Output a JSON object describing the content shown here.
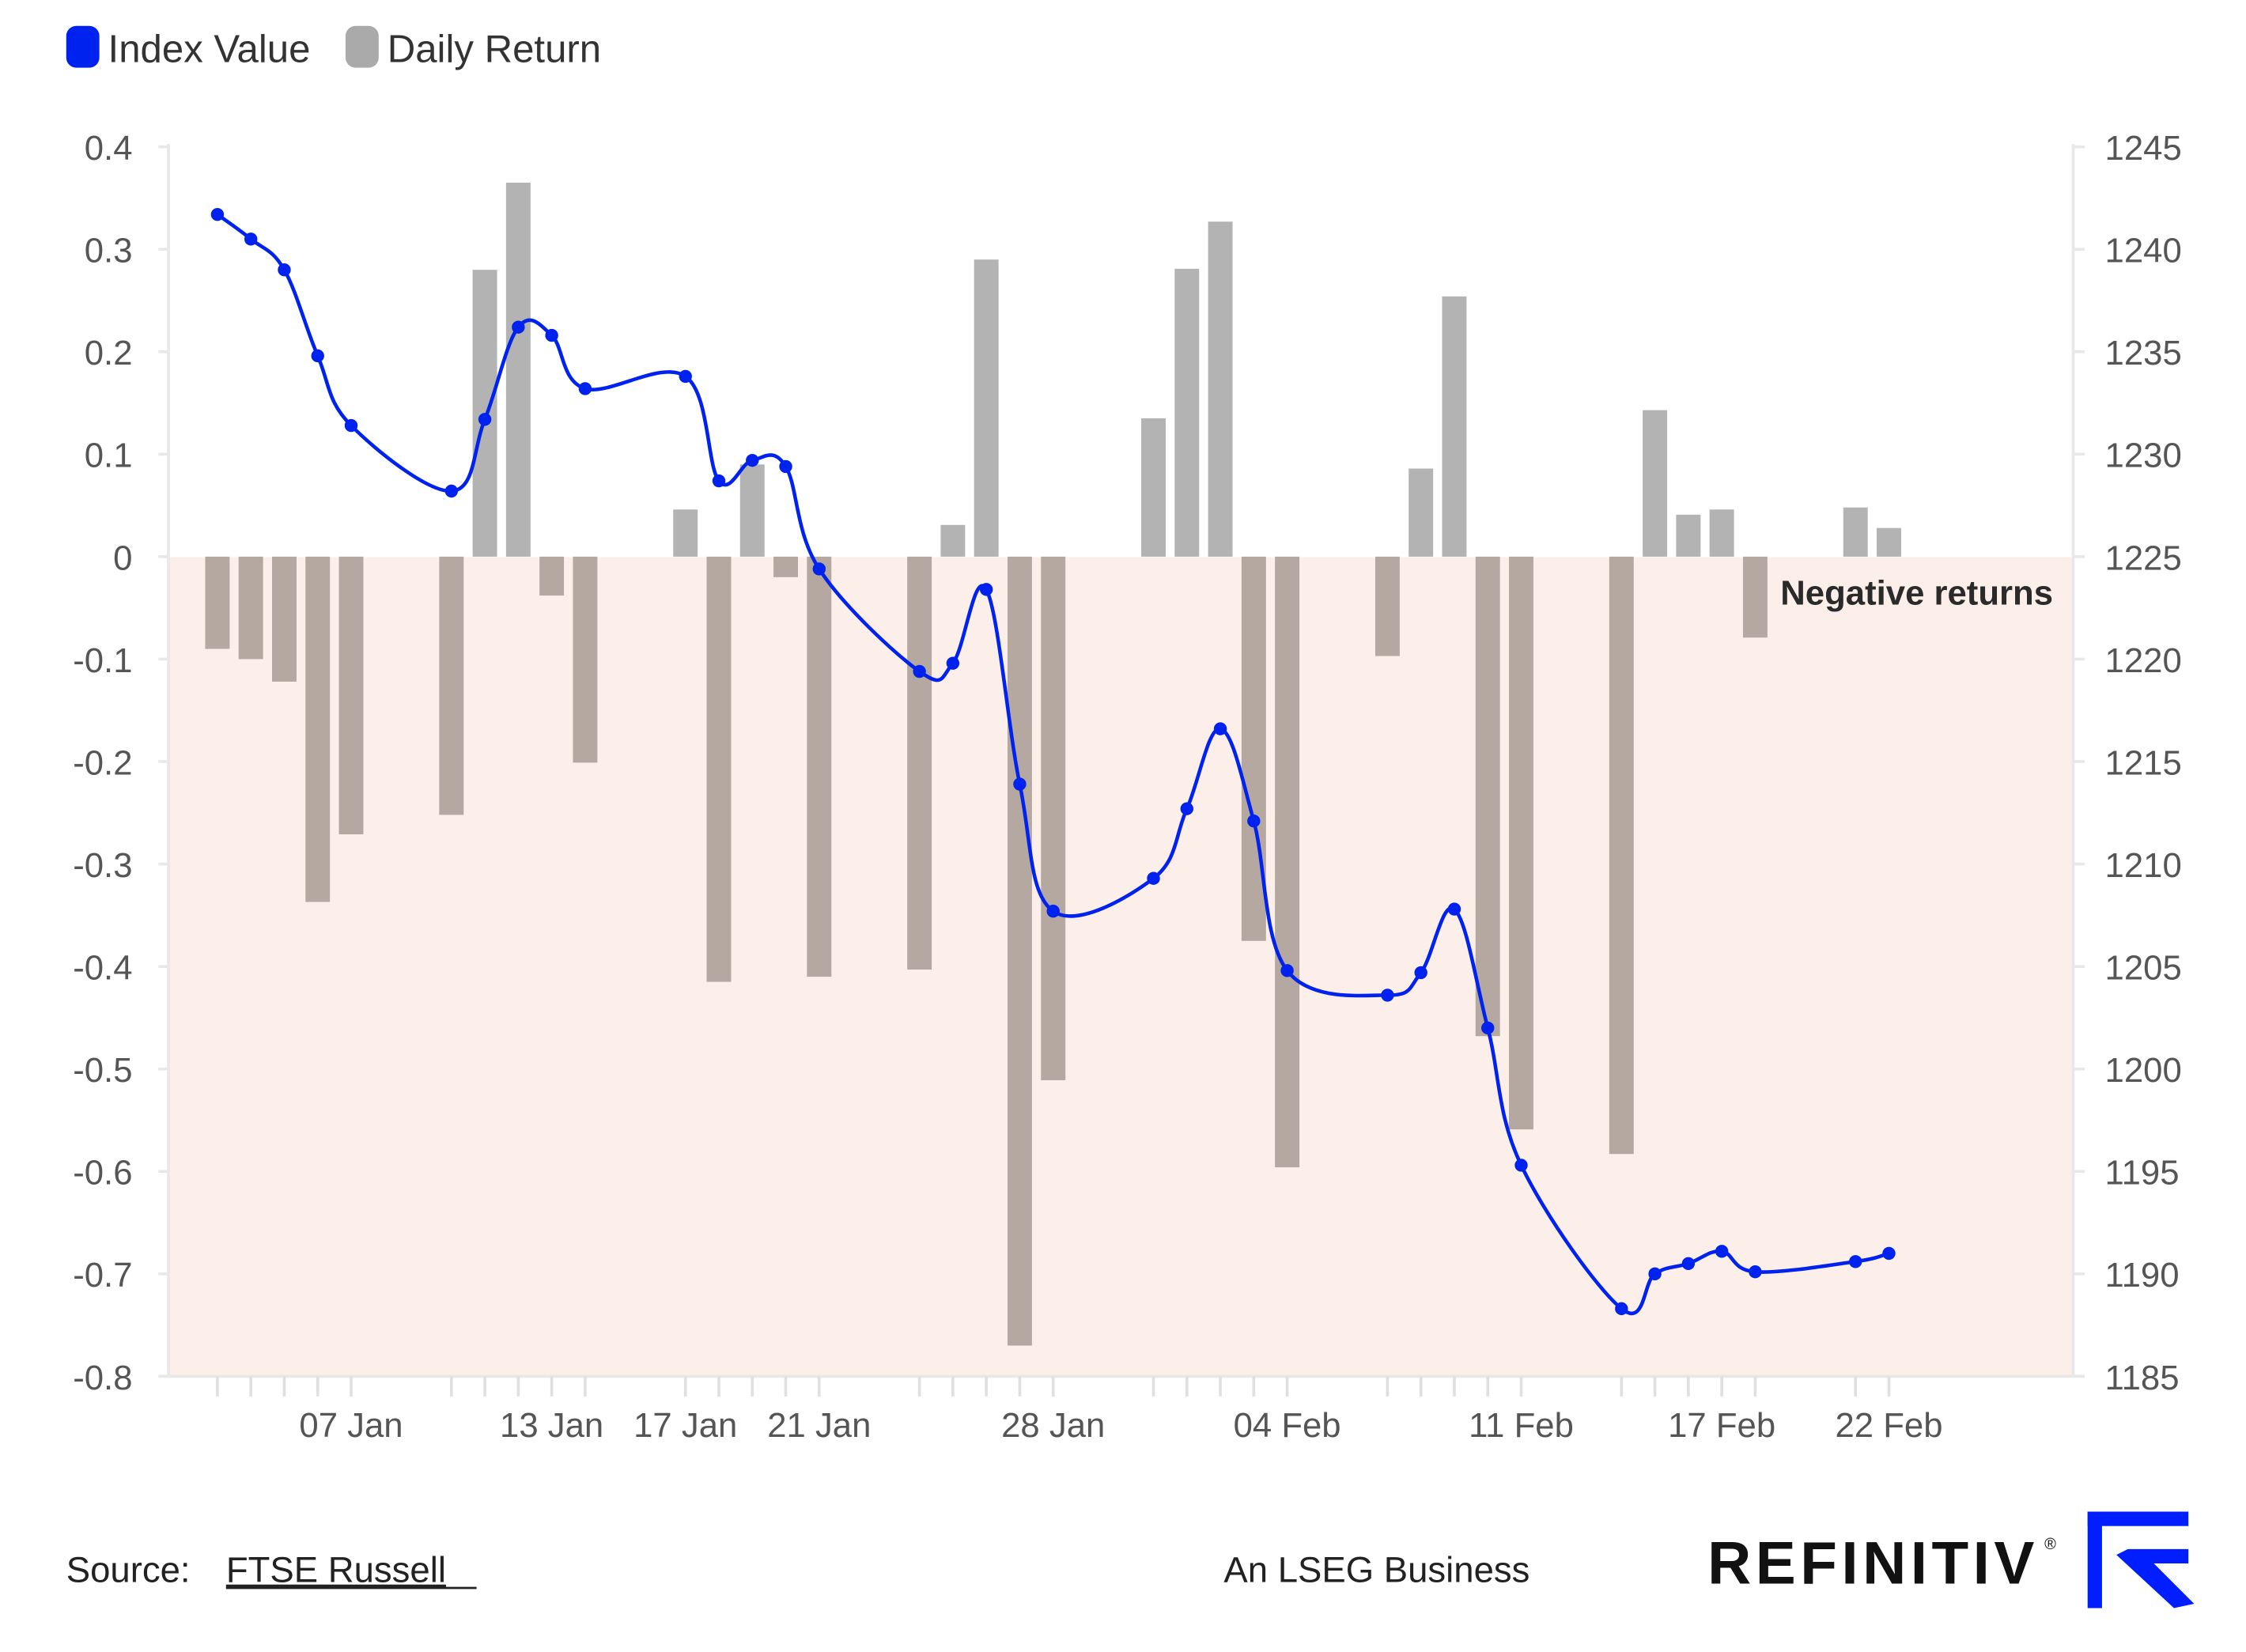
{
  "legend": {
    "index_label": "Index Value",
    "return_label": "Daily Return"
  },
  "annotation": "Negative returns",
  "footer": {
    "source_label": "Source:",
    "source_link": "FTSE Russell",
    "tagline": "An LSEG Business",
    "brand": "REFINITIV",
    "registered": "®"
  },
  "colors": {
    "line": "#0022ee",
    "bar_pos": "#b3b3b3",
    "bar_neg": "#b5a8a1",
    "neg_zone": "#fcefea",
    "brand": "#001eff"
  },
  "chart_data": {
    "type": "bar+line",
    "title": "",
    "xlabel": "",
    "ylabel_left": "Daily Return",
    "ylabel_right": "Index Value",
    "ylim_left": [
      -0.8,
      0.4
    ],
    "ylim_right": [
      1185,
      1245
    ],
    "yticks_left": [
      "0.4",
      "0.3",
      "0.2",
      "0.1",
      "0",
      "-0.1",
      "-0.2",
      "-0.3",
      "-0.4",
      "-0.5",
      "-0.6",
      "-0.7",
      "-0.8"
    ],
    "yticks_right": [
      "1245",
      "1240",
      "1235",
      "1230",
      "1225",
      "1220",
      "1215",
      "1210",
      "1205",
      "1200",
      "1195",
      "1190",
      "1185"
    ],
    "xtick_labels": [
      "07 Jan",
      "13 Jan",
      "17 Jan",
      "21 Jan",
      "28 Jan",
      "04 Feb",
      "11 Feb",
      "17 Feb",
      "22 Feb"
    ],
    "legend_position": "top-left",
    "dates": [
      "03 Jan",
      "04 Jan",
      "05 Jan",
      "06 Jan",
      "07 Jan",
      "10 Jan",
      "11 Jan",
      "12 Jan",
      "13 Jan",
      "14 Jan",
      "17 Jan",
      "18 Jan",
      "19 Jan",
      "20 Jan",
      "21 Jan",
      "24 Jan",
      "25 Jan",
      "26 Jan",
      "27 Jan",
      "28 Jan",
      "31 Jan",
      "01 Feb",
      "02 Feb",
      "03 Feb",
      "04 Feb",
      "07 Feb",
      "08 Feb",
      "09 Feb",
      "10 Feb",
      "11 Feb",
      "14 Feb",
      "15 Feb",
      "16 Feb",
      "17 Feb",
      "18 Feb",
      "21 Feb",
      "22 Feb"
    ],
    "series": [
      {
        "name": "Daily Return",
        "type": "bar",
        "axis": "left",
        "values": [
          -0.09,
          -0.1,
          -0.122,
          -0.337,
          -0.271,
          -0.252,
          0.28,
          0.365,
          -0.038,
          -0.201,
          0.046,
          -0.415,
          0.09,
          -0.02,
          -0.41,
          -0.403,
          0.031,
          0.29,
          -0.77,
          -0.511,
          0.135,
          0.281,
          0.327,
          -0.375,
          -0.596,
          -0.097,
          0.086,
          0.254,
          -0.468,
          -0.559,
          -0.583,
          0.143,
          0.041,
          0.046,
          -0.079,
          0.048,
          0.028
        ]
      },
      {
        "name": "Index Value",
        "type": "line",
        "axis": "right",
        "values": [
          1241.7,
          1240.5,
          1239.0,
          1234.8,
          1231.4,
          1228.2,
          1231.7,
          1236.2,
          1235.8,
          1233.2,
          1233.8,
          1228.7,
          1229.7,
          1229.4,
          1224.4,
          1219.4,
          1219.8,
          1223.4,
          1213.9,
          1207.7,
          1209.3,
          1212.7,
          1216.6,
          1212.1,
          1204.8,
          1203.6,
          1204.7,
          1207.8,
          1202.0,
          1195.3,
          1188.3,
          1190.0,
          1190.5,
          1191.1,
          1190.1,
          1190.6,
          1191.0
        ]
      }
    ]
  }
}
